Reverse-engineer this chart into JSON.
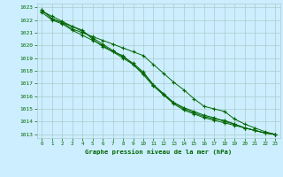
{
  "title": "Graphe pression niveau de la mer (hPa)",
  "bg_color": "#cceeff",
  "grid_color": "#aacccc",
  "line_color": "#006600",
  "xlim": [
    -0.5,
    23.5
  ],
  "ylim": [
    1012.7,
    1023.3
  ],
  "xticks": [
    0,
    1,
    2,
    3,
    4,
    5,
    6,
    7,
    8,
    9,
    10,
    11,
    12,
    13,
    14,
    15,
    16,
    17,
    18,
    19,
    20,
    21,
    22,
    23
  ],
  "yticks": [
    1013,
    1014,
    1015,
    1016,
    1017,
    1018,
    1019,
    1020,
    1021,
    1022,
    1023
  ],
  "series": [
    {
      "x": [
        0,
        1,
        2,
        3,
        4,
        5,
        6,
        7,
        8,
        9,
        10,
        11,
        12,
        13,
        14,
        15,
        16,
        17,
        18,
        19,
        20,
        21,
        22,
        23
      ],
      "y": [
        1022.8,
        1022.1,
        1021.8,
        1021.3,
        1021.0,
        1020.7,
        1020.4,
        1020.1,
        1019.8,
        1019.5,
        1019.2,
        1018.5,
        1017.8,
        1017.1,
        1016.5,
        1015.8,
        1015.2,
        1015.0,
        1014.8,
        1014.2,
        1013.8,
        1013.5,
        1013.2,
        1013.0
      ]
    },
    {
      "x": [
        0,
        1,
        2,
        3,
        4,
        5,
        6,
        7,
        8,
        9,
        10,
        11,
        12,
        13,
        14,
        15,
        16,
        17,
        18,
        19,
        20,
        21,
        22,
        23
      ],
      "y": [
        1022.8,
        1022.1,
        1021.8,
        1021.5,
        1021.2,
        1020.5,
        1019.9,
        1019.5,
        1019.0,
        1018.5,
        1017.8,
        1016.9,
        1016.2,
        1015.5,
        1015.0,
        1014.7,
        1014.4,
        1014.2,
        1014.1,
        1013.8,
        1013.5,
        1013.3,
        1013.1,
        1013.0
      ]
    },
    {
      "x": [
        0,
        1,
        2,
        3,
        4,
        5,
        6,
        7,
        8,
        9,
        10,
        11,
        12,
        13,
        14,
        15,
        16,
        17,
        18,
        19,
        20,
        21,
        22,
        23
      ],
      "y": [
        1022.6,
        1022.0,
        1021.7,
        1021.2,
        1020.8,
        1020.4,
        1020.0,
        1019.5,
        1019.2,
        1018.5,
        1017.7,
        1016.8,
        1016.1,
        1015.5,
        1015.1,
        1014.8,
        1014.5,
        1014.3,
        1014.0,
        1013.8,
        1013.5,
        1013.3,
        1013.1,
        1013.0
      ]
    },
    {
      "x": [
        0,
        1,
        2,
        3,
        4,
        5,
        6,
        7,
        8,
        9,
        10,
        11,
        12,
        13,
        14,
        15,
        16,
        17,
        18,
        19,
        20,
        21,
        22,
        23
      ],
      "y": [
        1022.7,
        1022.3,
        1021.9,
        1021.5,
        1021.1,
        1020.6,
        1020.1,
        1019.6,
        1019.1,
        1018.6,
        1017.9,
        1016.9,
        1016.1,
        1015.4,
        1014.9,
        1014.6,
        1014.3,
        1014.1,
        1013.9,
        1013.7,
        1013.5,
        1013.3,
        1013.1,
        1013.0
      ]
    }
  ]
}
